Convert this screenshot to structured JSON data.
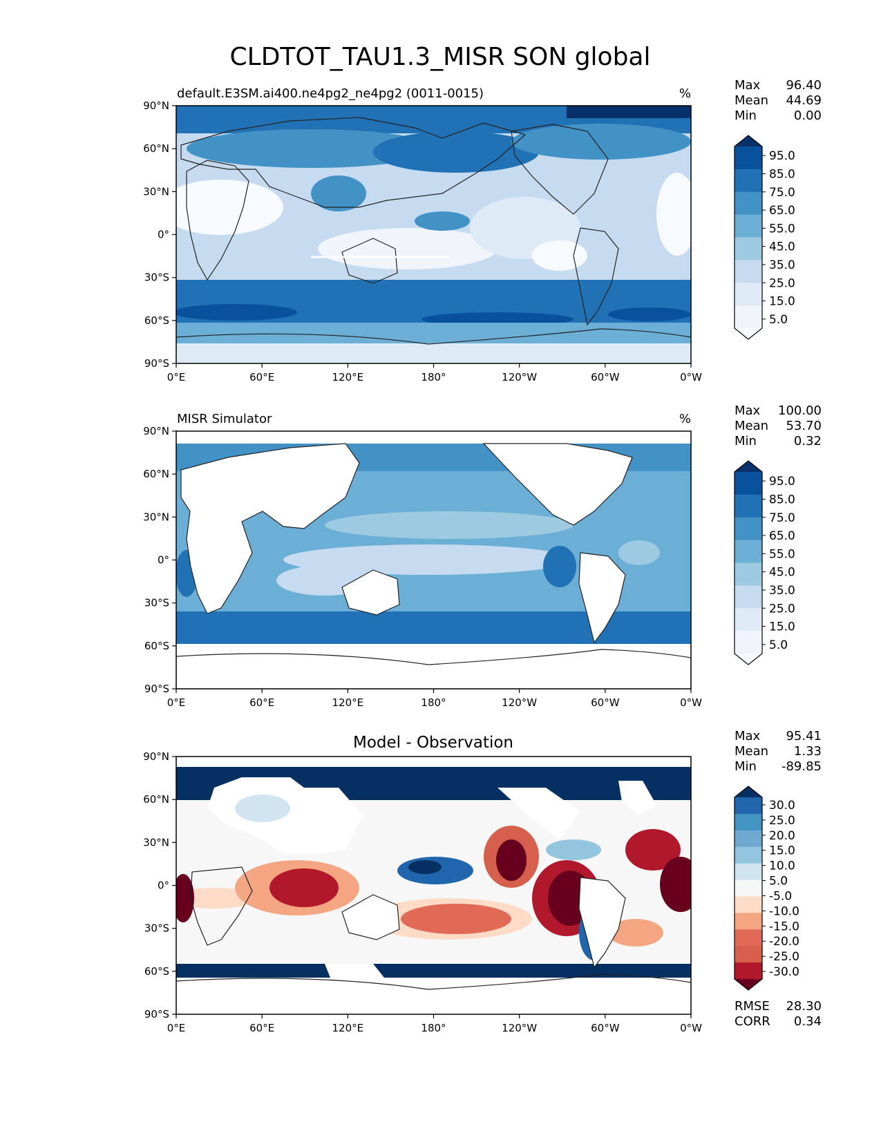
{
  "title": "CLDTOT_TAU1.3_MISR SON global",
  "x_ticks": [
    "0°E",
    "60°E",
    "120°E",
    "180°",
    "120°W",
    "60°W",
    "0°W"
  ],
  "y_ticks": [
    "90°N",
    "60°N",
    "30°N",
    "0°",
    "30°S",
    "60°S",
    "90°S"
  ],
  "chart_data": [
    {
      "type": "heatmap",
      "panel": "model",
      "title_left": "default.E3SM.ai400.ne4pg2_ne4pg2 (0011-0015)",
      "units": "%",
      "stats": [
        {
          "label": "Max",
          "value": "96.40"
        },
        {
          "label": "Mean",
          "value": "44.69"
        },
        {
          "label": "Min",
          "value": "0.00"
        }
      ],
      "colorbar": {
        "labels": [
          "95.0",
          "85.0",
          "75.0",
          "65.0",
          "55.0",
          "45.0",
          "35.0",
          "25.0",
          "15.0",
          "5.0"
        ],
        "colors": [
          "#08306b",
          "#08519c",
          "#2171b5",
          "#4292c6",
          "#6baed6",
          "#9ecae1",
          "#c6dbef",
          "#deebf7",
          "#f0f5fb",
          "#f7fbff"
        ]
      }
    },
    {
      "type": "heatmap",
      "panel": "observation",
      "title_left": "MISR Simulator",
      "units": "%",
      "stats": [
        {
          "label": "Max",
          "value": "100.00"
        },
        {
          "label": "Mean",
          "value": "53.70"
        },
        {
          "label": "Min",
          "value": "0.32"
        }
      ],
      "colorbar": {
        "labels": [
          "95.0",
          "85.0",
          "75.0",
          "65.0",
          "55.0",
          "45.0",
          "35.0",
          "25.0",
          "15.0",
          "5.0"
        ],
        "colors": [
          "#08306b",
          "#08519c",
          "#2171b5",
          "#4292c6",
          "#6baed6",
          "#9ecae1",
          "#c6dbef",
          "#deebf7",
          "#f0f5fb",
          "#f7fbff"
        ]
      }
    },
    {
      "type": "heatmap",
      "panel": "difference",
      "title_center": "Model - Observation",
      "stats": [
        {
          "label": "Max",
          "value": "95.41"
        },
        {
          "label": "Mean",
          "value": "1.33"
        },
        {
          "label": "Min",
          "value": "-89.85"
        }
      ],
      "colorbar": {
        "labels": [
          "30.0",
          "25.0",
          "20.0",
          "15.0",
          "10.0",
          "5.0",
          "-5.0",
          "-10.0",
          "-15.0",
          "-20.0",
          "-25.0",
          "-30.0"
        ],
        "colors": [
          "#053061",
          "#2166ac",
          "#4393c3",
          "#6fa8d1",
          "#92c5de",
          "#d1e5f0",
          "#f7f7f7",
          "#fddbc7",
          "#f4a582",
          "#e06a55",
          "#d6604d",
          "#b2182b",
          "#67001f"
        ]
      },
      "metrics": [
        {
          "label": "RMSE",
          "value": "28.30"
        },
        {
          "label": "CORR",
          "value": "0.34"
        }
      ]
    }
  ]
}
